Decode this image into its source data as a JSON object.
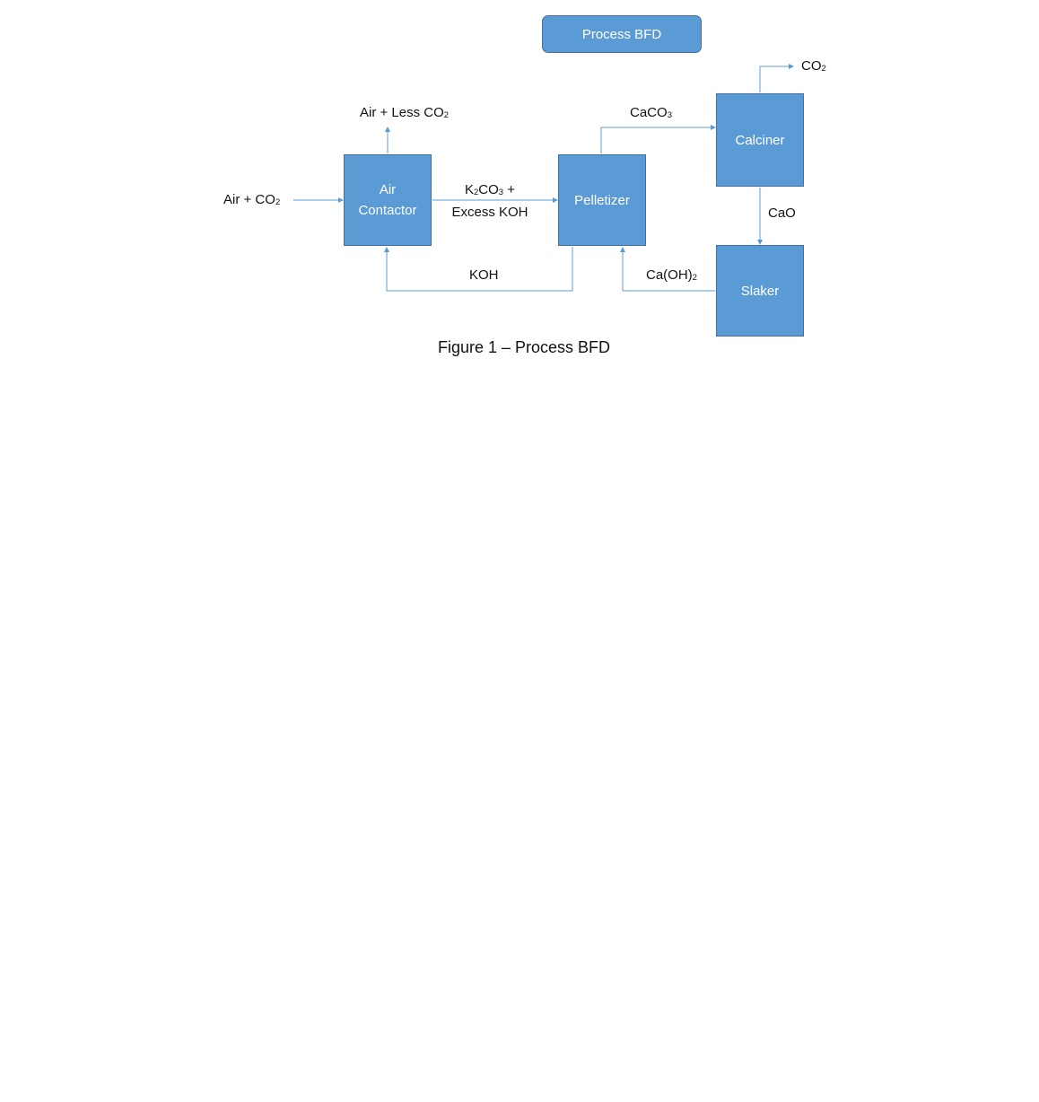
{
  "title_button": "Process BFD",
  "blocks": {
    "air_contactor": {
      "line1": "Air",
      "line2": "Contactor"
    },
    "pelletizer": "Pelletizer",
    "calciner": "Calciner",
    "slaker": "Slaker"
  },
  "streams": {
    "feed": {
      "text": "Air + CO",
      "sub": "2"
    },
    "vent": {
      "text": "Air + Less CO",
      "sub": "2"
    },
    "carbonate": {
      "k": "K",
      "sub1": "2",
      "co": "CO",
      "sub2": "3",
      "plus": " +",
      "line2": "Excess KOH"
    },
    "caco3": {
      "text": "CaCO",
      "sub": "3"
    },
    "co2_out": {
      "text": "CO",
      "sub": "2"
    },
    "cao": "CaO",
    "koh": "KOH",
    "caoh2": {
      "text": "Ca(OH)",
      "sub": "2"
    }
  },
  "caption": "Figure 1 – Process BFD",
  "colors": {
    "block_fill": "#5b9bd5",
    "block_border": "#41719c",
    "arrow": "#5b9bd5"
  }
}
